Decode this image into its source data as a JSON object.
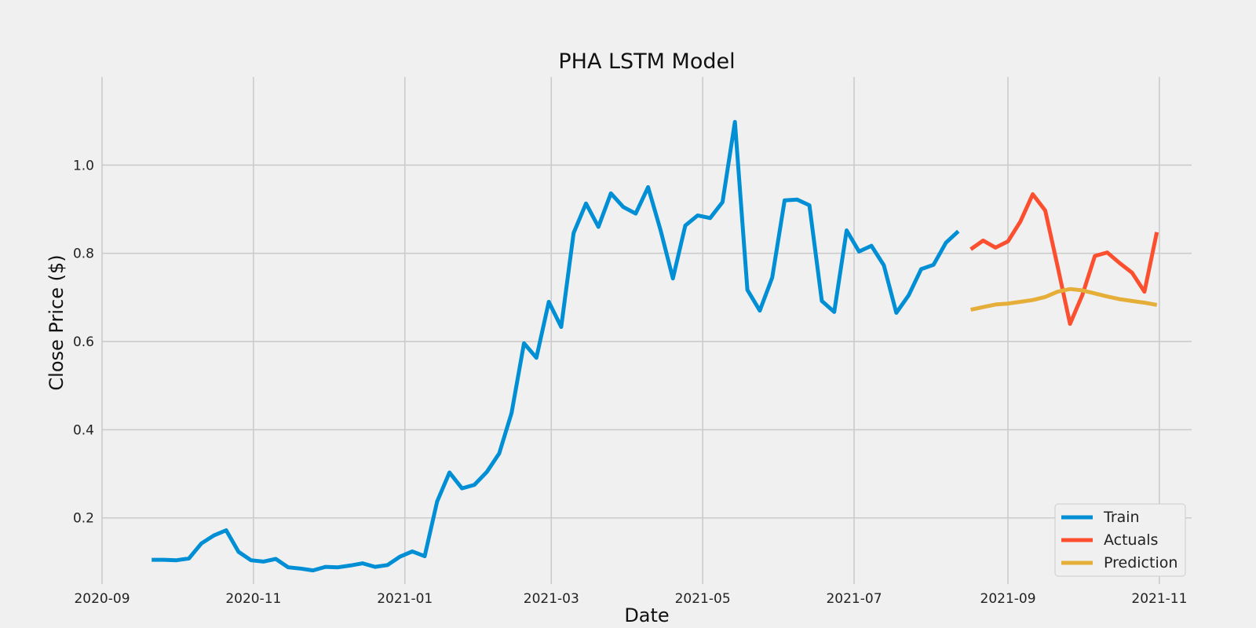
{
  "chart_data": {
    "type": "line",
    "title": "PHA LSTM Model",
    "xlabel": "Date",
    "ylabel": "Close Price ($)",
    "xlim": [
      "2020-09-01",
      "2021-11-14"
    ],
    "ylim": [
      0.05,
      1.2
    ],
    "x_ticks": [
      "2020-09",
      "2020-11",
      "2021-01",
      "2021-03",
      "2021-05",
      "2021-07",
      "2021-09",
      "2021-11"
    ],
    "x_tick_dates": [
      "2020-09-01",
      "2020-11-01",
      "2021-01-01",
      "2021-03-01",
      "2021-05-01",
      "2021-07-01",
      "2021-09-01",
      "2021-11-01"
    ],
    "y_ticks": [
      0.2,
      0.4,
      0.6,
      0.8,
      1.0
    ],
    "y_tick_labels": [
      "0.2",
      "0.4",
      "0.6",
      "0.8",
      "1.0"
    ],
    "grid": true,
    "legend_position": "bottom-right",
    "series": [
      {
        "name": "Train",
        "color": "#008fd5",
        "points": [
          [
            "2020-09-21",
            0.105
          ],
          [
            "2020-09-26",
            0.105
          ],
          [
            "2020-10-01",
            0.104
          ],
          [
            "2020-10-06",
            0.108
          ],
          [
            "2020-10-11",
            0.142
          ],
          [
            "2020-10-16",
            0.16
          ],
          [
            "2020-10-21",
            0.172
          ],
          [
            "2020-10-26",
            0.123
          ],
          [
            "2020-10-31",
            0.104
          ],
          [
            "2020-11-05",
            0.101
          ],
          [
            "2020-11-10",
            0.107
          ],
          [
            "2020-11-15",
            0.088
          ],
          [
            "2020-11-20",
            0.085
          ],
          [
            "2020-11-25",
            0.081
          ],
          [
            "2020-11-30",
            0.089
          ],
          [
            "2020-12-05",
            0.088
          ],
          [
            "2020-12-10",
            0.092
          ],
          [
            "2020-12-15",
            0.097
          ],
          [
            "2020-12-20",
            0.089
          ],
          [
            "2020-12-25",
            0.093
          ],
          [
            "2020-12-30",
            0.112
          ],
          [
            "2021-01-04",
            0.124
          ],
          [
            "2021-01-09",
            0.113
          ],
          [
            "2021-01-14",
            0.237
          ],
          [
            "2021-01-19",
            0.303
          ],
          [
            "2021-01-24",
            0.267
          ],
          [
            "2021-01-29",
            0.275
          ],
          [
            "2021-02-03",
            0.304
          ],
          [
            "2021-02-08",
            0.346
          ],
          [
            "2021-02-13",
            0.438
          ],
          [
            "2021-02-18",
            0.596
          ],
          [
            "2021-02-23",
            0.563
          ],
          [
            "2021-02-28",
            0.69
          ],
          [
            "2021-03-05",
            0.633
          ],
          [
            "2021-03-10",
            0.846
          ],
          [
            "2021-03-15",
            0.913
          ],
          [
            "2021-03-20",
            0.86
          ],
          [
            "2021-03-25",
            0.936
          ],
          [
            "2021-03-30",
            0.905
          ],
          [
            "2021-04-04",
            0.89
          ],
          [
            "2021-04-09",
            0.95
          ],
          [
            "2021-04-14",
            0.853
          ],
          [
            "2021-04-19",
            0.743
          ],
          [
            "2021-04-24",
            0.863
          ],
          [
            "2021-04-29",
            0.886
          ],
          [
            "2021-05-04",
            0.88
          ],
          [
            "2021-05-09",
            0.916
          ],
          [
            "2021-05-14",
            1.098
          ],
          [
            "2021-05-19",
            0.717
          ],
          [
            "2021-05-24",
            0.67
          ],
          [
            "2021-05-29",
            0.745
          ],
          [
            "2021-06-03",
            0.92
          ],
          [
            "2021-06-08",
            0.922
          ],
          [
            "2021-06-13",
            0.909
          ],
          [
            "2021-06-18",
            0.692
          ],
          [
            "2021-06-23",
            0.667
          ],
          [
            "2021-06-28",
            0.852
          ],
          [
            "2021-07-03",
            0.804
          ],
          [
            "2021-07-08",
            0.817
          ],
          [
            "2021-07-13",
            0.773
          ],
          [
            "2021-07-18",
            0.665
          ],
          [
            "2021-07-23",
            0.705
          ],
          [
            "2021-07-28",
            0.764
          ],
          [
            "2021-08-02",
            0.774
          ],
          [
            "2021-08-07",
            0.824
          ],
          [
            "2021-08-12",
            0.85
          ]
        ]
      },
      {
        "name": "Actuals",
        "color": "#fc4f30",
        "points": [
          [
            "2021-08-17",
            0.809
          ],
          [
            "2021-08-22",
            0.829
          ],
          [
            "2021-08-27",
            0.813
          ],
          [
            "2021-09-01",
            0.827
          ],
          [
            "2021-09-06",
            0.872
          ],
          [
            "2021-09-11",
            0.934
          ],
          [
            "2021-09-16",
            0.897
          ],
          [
            "2021-09-21",
            0.77
          ],
          [
            "2021-09-26",
            0.64
          ],
          [
            "2021-10-01",
            0.706
          ],
          [
            "2021-10-06",
            0.794
          ],
          [
            "2021-10-11",
            0.802
          ],
          [
            "2021-10-16",
            0.778
          ],
          [
            "2021-10-21",
            0.756
          ],
          [
            "2021-10-26",
            0.713
          ],
          [
            "2021-10-31",
            0.848
          ]
        ]
      },
      {
        "name": "Prediction",
        "color": "#e5ae38",
        "points": [
          [
            "2021-08-17",
            0.672
          ],
          [
            "2021-08-22",
            0.678
          ],
          [
            "2021-08-27",
            0.684
          ],
          [
            "2021-09-01",
            0.686
          ],
          [
            "2021-09-06",
            0.69
          ],
          [
            "2021-09-11",
            0.694
          ],
          [
            "2021-09-16",
            0.701
          ],
          [
            "2021-09-21",
            0.713
          ],
          [
            "2021-09-26",
            0.719
          ],
          [
            "2021-10-01",
            0.716
          ],
          [
            "2021-10-06",
            0.709
          ],
          [
            "2021-10-11",
            0.702
          ],
          [
            "2021-10-16",
            0.696
          ],
          [
            "2021-10-21",
            0.692
          ],
          [
            "2021-10-26",
            0.688
          ],
          [
            "2021-10-31",
            0.683
          ]
        ]
      }
    ]
  }
}
